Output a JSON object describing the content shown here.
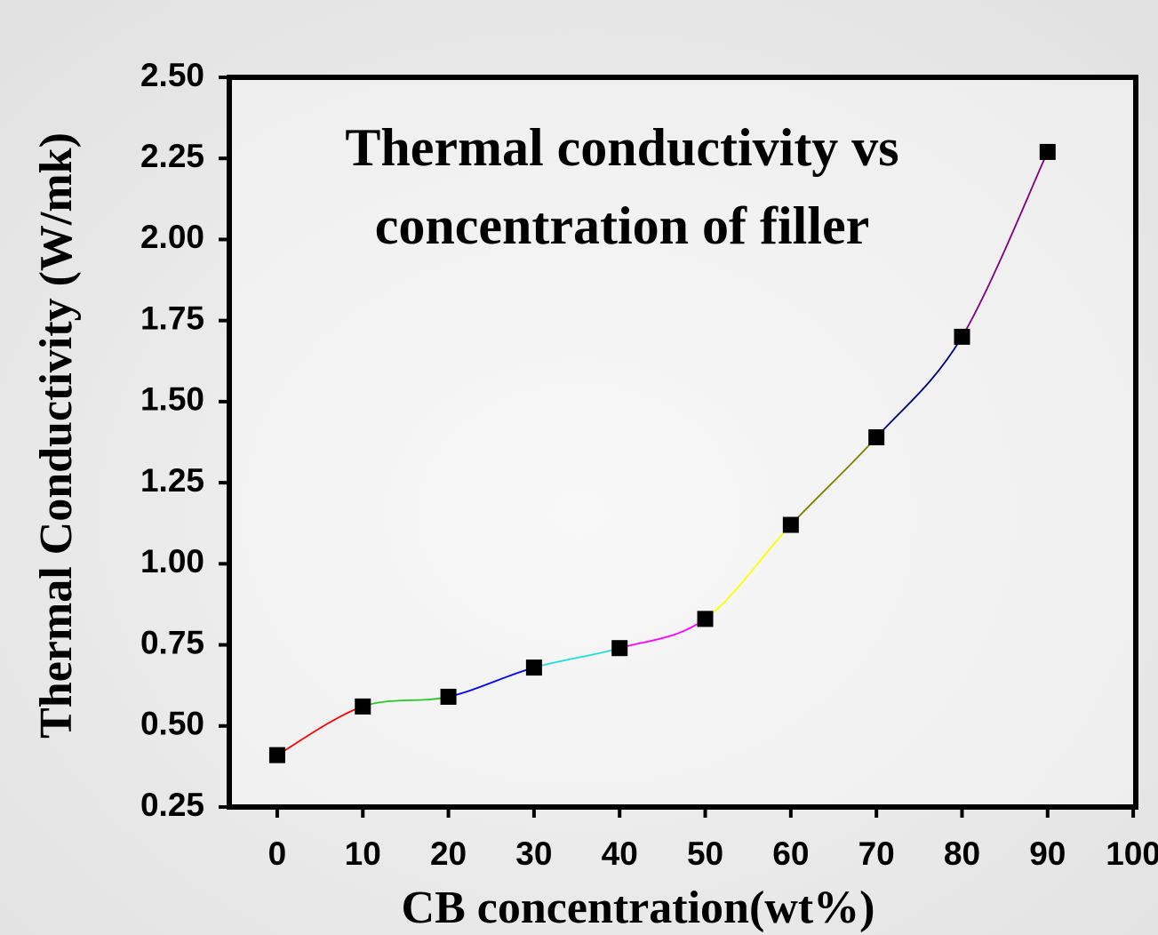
{
  "chart_data": {
    "type": "line",
    "title": [
      "Thermal conductivity vs",
      "concentration of filler"
    ],
    "x_label": "CB concentration(wt%)",
    "y_label": "Thermal Conductivity (W/mk)",
    "x": [
      0,
      10,
      20,
      30,
      40,
      50,
      60,
      70,
      80,
      90
    ],
    "values": [
      0.41,
      0.56,
      0.59,
      0.68,
      0.74,
      0.83,
      1.12,
      1.39,
      1.7,
      2.27
    ],
    "marker_color": "#000000",
    "curve_colors": [
      "#ff0000",
      "#22cc22",
      "#0000ff",
      "#22dddd",
      "#ff00ff",
      "#ffff00",
      "#808000",
      "#000080",
      "#800080"
    ],
    "xlim": [
      -5.6,
      100.3
    ],
    "ylim": [
      0.25,
      2.5
    ],
    "xticks": [
      0,
      10,
      20,
      30,
      40,
      50,
      60,
      70,
      80,
      90,
      100
    ],
    "yticks": [
      {
        "value": 0.25,
        "label": "0.25"
      },
      {
        "value": 0.5,
        "label": "0.50"
      },
      {
        "value": 0.75,
        "label": "0.75"
      },
      {
        "value": 1.0,
        "label": "1.00"
      },
      {
        "value": 1.25,
        "label": "1.25"
      },
      {
        "value": 1.5,
        "label": "1.50"
      },
      {
        "value": 1.75,
        "label": "1.75"
      },
      {
        "value": 2.0,
        "label": "2.00"
      },
      {
        "value": 2.25,
        "label": "2.25"
      },
      {
        "value": 2.5,
        "label": "2.50"
      }
    ]
  }
}
